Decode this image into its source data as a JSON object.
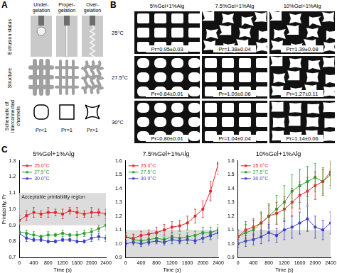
{
  "panel_labels": [
    "A",
    "B",
    "C"
  ],
  "panel_a": {
    "columns": [
      "Under-gelation",
      "Proper-gelation",
      "Over-gelation"
    ],
    "rows": [
      "Extrusion status",
      "Structure",
      "Schematic of interconnected channels"
    ],
    "pr_labels": [
      "Pr<1",
      "Pr=1",
      "Pr>1"
    ]
  },
  "panel_b": {
    "columns": [
      "5%Gel+1%Alg",
      "7.5%Gel+1%Alg",
      "10%Gel+1%Alg"
    ],
    "rows": [
      "25°C",
      "27.5°C",
      "30°C"
    ],
    "cells": [
      [
        {
          "text": "Pr=0.95±0.03",
          "pr": 0.95
        },
        {
          "text": "Pr=1.38±0.04",
          "pr": 1.38
        },
        {
          "text": "Pr=1.39±0.08",
          "pr": 1.39
        }
      ],
      [
        {
          "text": "Pr=0.84±0.01",
          "pr": 0.84
        },
        {
          "text": "Pr=1.09±0.06",
          "pr": 1.09
        },
        {
          "text": "Pr=1.27±0.11",
          "pr": 1.27
        }
      ],
      [
        {
          "text": "Pr=0.80±0.01",
          "pr": 0.8
        },
        {
          "text": "Pr=1.04±0.04",
          "pr": 1.04
        },
        {
          "text": "Pr=1.14±0.06",
          "pr": 1.14
        }
      ]
    ]
  },
  "chart_data": [
    {
      "type": "line",
      "title": "5%Gel+1%Alg",
      "x_label": "Time (s)",
      "y_label": "Printability, Pr",
      "annotation": "Acceptable printability region",
      "acceptable_region": [
        0.9,
        1.1
      ],
      "x": [
        0,
        200,
        400,
        600,
        800,
        1000,
        1200,
        1400,
        1600,
        1800,
        2000,
        2200,
        2400
      ],
      "xlim": [
        0,
        2400
      ],
      "xticks": [
        0,
        400,
        800,
        1200,
        1600,
        2000,
        2400
      ],
      "ylim": [
        0.7,
        1.3
      ],
      "yticks": [
        0.7,
        0.8,
        0.9,
        {
          "value": 1,
          "label": "1.0"
        },
        1.1,
        1.2,
        1.3
      ],
      "grid": false,
      "legend": "upper left",
      "marker": "square",
      "series": [
        {
          "name": "25.0°C",
          "color": "#e3242b",
          "values": [
            0.93,
            0.96,
            0.98,
            0.97,
            0.98,
            0.98,
            0.97,
            0.99,
            0.98,
            0.97,
            0.98,
            0.98,
            0.97
          ],
          "errors": [
            0.03,
            0.03,
            0.03,
            0.02,
            0.03,
            0.02,
            0.03,
            0.02,
            0.03,
            0.02,
            0.03,
            0.02,
            0.03
          ]
        },
        {
          "name": "27.5°C",
          "color": "#2ca02c",
          "values": [
            0.86,
            0.85,
            0.84,
            0.83,
            0.84,
            0.84,
            0.85,
            0.84,
            0.84,
            0.85,
            0.86,
            0.88,
            0.9
          ],
          "errors": [
            0.02,
            0.02,
            0.02,
            0.01,
            0.02,
            0.01,
            0.02,
            0.01,
            0.02,
            0.02,
            0.02,
            0.02,
            0.03
          ]
        },
        {
          "name": "30.0°C",
          "color": "#3b3bd1",
          "values": [
            0.85,
            0.82,
            0.81,
            0.81,
            0.8,
            0.8,
            0.81,
            0.81,
            0.8,
            0.8,
            0.82,
            0.83,
            0.82
          ],
          "errors": [
            0.05,
            0.02,
            0.01,
            0.01,
            0.01,
            0.01,
            0.01,
            0.01,
            0.01,
            0.01,
            0.02,
            0.02,
            0.02
          ]
        }
      ]
    },
    {
      "type": "line",
      "title": "7.5%Gel+1%Alg",
      "x_label": "Time (s)",
      "acceptable_region": [
        0.9,
        1.1
      ],
      "x": [
        0,
        200,
        400,
        600,
        800,
        1000,
        1200,
        1400,
        1600,
        1800,
        2000,
        2200,
        2400
      ],
      "xlim": [
        0,
        2400
      ],
      "xticks": [
        0,
        400,
        800,
        1200,
        1600,
        2000,
        2400
      ],
      "ylim": [
        0.9,
        1.6
      ],
      "yticks": [
        0.9,
        {
          "value": 1,
          "label": "1.0"
        },
        1.1,
        1.2,
        1.3,
        1.4,
        1.5,
        1.6
      ],
      "grid": false,
      "legend": "upper left",
      "marker": "square",
      "series": [
        {
          "name": "25.0°C",
          "color": "#e3242b",
          "values": [
            1.05,
            1.04,
            1.06,
            1.07,
            1.08,
            1.1,
            1.12,
            1.13,
            1.15,
            1.2,
            1.25,
            1.38,
            1.58
          ],
          "errors": [
            0.03,
            0.03,
            0.03,
            0.03,
            0.04,
            0.04,
            0.04,
            0.04,
            0.05,
            0.05,
            0.06,
            0.07,
            0.08
          ]
        },
        {
          "name": "27.5°C",
          "color": "#2ca02c",
          "values": [
            1.05,
            1.03,
            1.02,
            1.03,
            1.04,
            1.03,
            1.05,
            1.04,
            1.05,
            1.06,
            1.08,
            1.08,
            1.1
          ],
          "errors": [
            0.03,
            0.03,
            0.02,
            0.03,
            0.03,
            0.02,
            0.03,
            0.03,
            0.03,
            0.03,
            0.04,
            0.04,
            0.04
          ]
        },
        {
          "name": "30.0°C",
          "color": "#3b3bd1",
          "values": [
            1.0,
            1.01,
            1.0,
            1.01,
            1.02,
            1.01,
            1.03,
            1.02,
            1.03,
            1.02,
            1.04,
            1.06,
            1.08
          ],
          "errors": [
            0.02,
            0.02,
            0.02,
            0.02,
            0.02,
            0.02,
            0.03,
            0.02,
            0.03,
            0.02,
            0.03,
            0.03,
            0.04
          ]
        }
      ]
    },
    {
      "type": "line",
      "title": "10%Gel+1%Alg",
      "x_label": "Time (s)",
      "acceptable_region": [
        0.9,
        1.1
      ],
      "x": [
        0,
        200,
        400,
        600,
        800,
        1000,
        1200,
        1400,
        1600,
        1800,
        2000,
        2200,
        2400
      ],
      "xlim": [
        0,
        2400
      ],
      "xticks": [
        0,
        400,
        800,
        1200,
        1600,
        2000,
        2400
      ],
      "ylim": [
        0.9,
        1.6
      ],
      "yticks": [
        0.9,
        {
          "value": 1,
          "label": "1.0"
        },
        1.1,
        1.2,
        1.3,
        1.4,
        1.5,
        1.6
      ],
      "grid": false,
      "legend": "upper left",
      "marker": "square",
      "series": [
        {
          "name": "25.0°C",
          "color": "#e3242b",
          "values": [
            1.05,
            1.1,
            1.12,
            1.15,
            1.2,
            1.22,
            1.25,
            1.3,
            1.35,
            1.38,
            1.42,
            1.45,
            1.52
          ],
          "errors": [
            0.05,
            0.06,
            0.06,
            0.07,
            0.08,
            0.08,
            0.09,
            0.1,
            0.1,
            0.1,
            0.1,
            0.09,
            0.1
          ]
        },
        {
          "name": "27.5°C",
          "color": "#2ca02c",
          "values": [
            1.05,
            1.08,
            1.1,
            1.15,
            1.2,
            1.25,
            1.3,
            1.38,
            1.42,
            1.45,
            1.48,
            1.45,
            1.5
          ],
          "errors": [
            0.05,
            0.06,
            0.07,
            0.08,
            0.09,
            0.1,
            0.12,
            0.12,
            0.12,
            0.11,
            0.1,
            0.1,
            0.1
          ]
        },
        {
          "name": "30.0°C",
          "color": "#3b3bd1",
          "values": [
            1.0,
            1.02,
            1.03,
            1.05,
            1.08,
            1.06,
            1.1,
            1.12,
            1.15,
            1.18,
            1.12,
            1.1,
            1.15
          ],
          "errors": [
            0.03,
            0.04,
            0.04,
            0.05,
            0.06,
            0.05,
            0.07,
            0.08,
            0.08,
            0.09,
            0.08,
            0.07,
            0.08
          ]
        }
      ]
    }
  ]
}
